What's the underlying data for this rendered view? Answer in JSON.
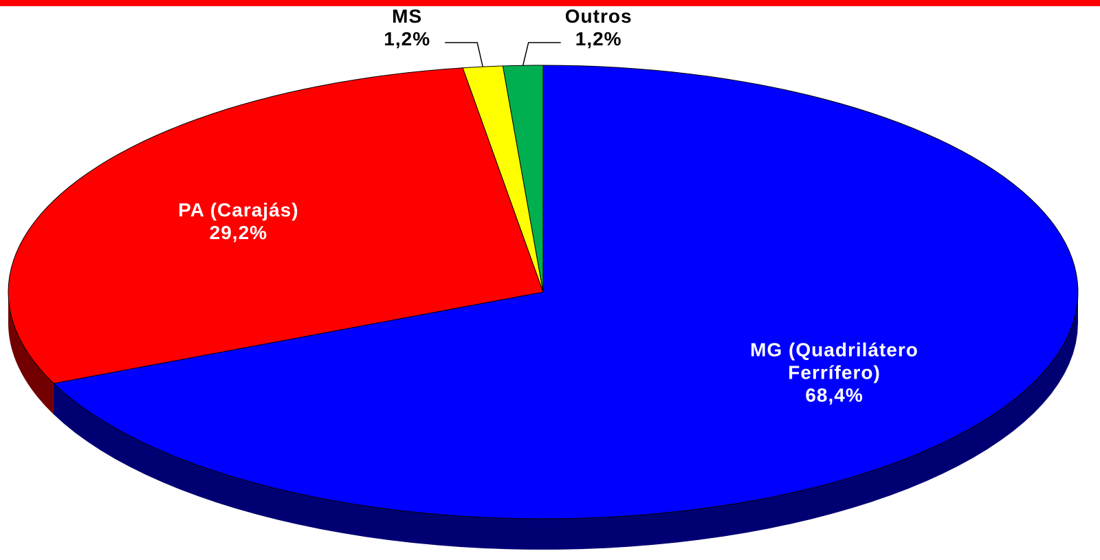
{
  "chart_data": {
    "type": "pie",
    "categories": [
      "MG (Quadrilátero Ferrífero)",
      "PA (Carajás)",
      "MS",
      "Outros"
    ],
    "values": [
      68.4,
      29.2,
      1.2,
      1.2
    ],
    "value_labels": [
      "68,4%",
      "29,2%",
      "1,2%",
      "1,2%"
    ],
    "colors": [
      "#0000ff",
      "#ff0000",
      "#ffff00",
      "#00b050"
    ]
  }
}
